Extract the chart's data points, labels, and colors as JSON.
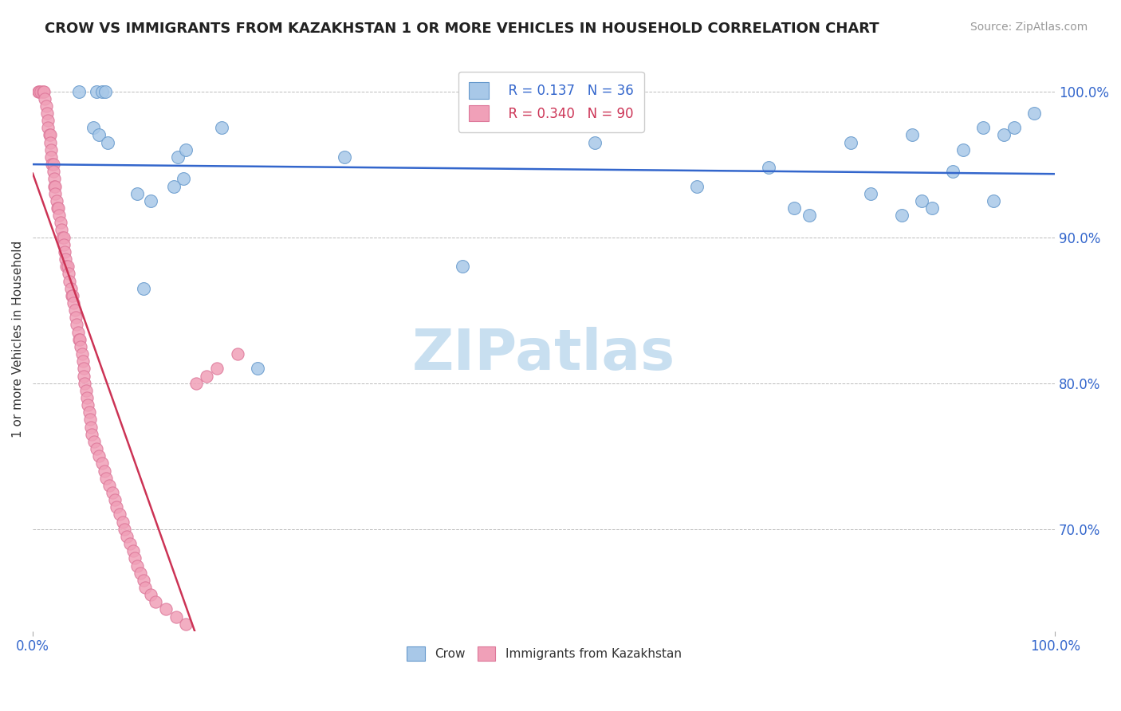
{
  "title": "CROW VS IMMIGRANTS FROM KAZAKHSTAN 1 OR MORE VEHICLES IN HOUSEHOLD CORRELATION CHART",
  "source": "Source: ZipAtlas.com",
  "ylabel": "1 or more Vehicles in Household",
  "ylabel_right_ticks": [
    70.0,
    80.0,
    90.0,
    100.0
  ],
  "xmin": 0.0,
  "xmax": 100.0,
  "ymin": 63.0,
  "ymax": 103.0,
  "crow_R": 0.137,
  "crow_N": 36,
  "immig_R": 0.34,
  "immig_N": 90,
  "crow_color": "#a8c8e8",
  "crow_edge_color": "#6699cc",
  "immig_color": "#f0a0b8",
  "immig_edge_color": "#dd7799",
  "trend_blue": "#3366cc",
  "trend_pink": "#cc3355",
  "watermark_color": "#c8dff0",
  "crow_x": [
    4.5,
    6.2,
    6.8,
    7.1,
    5.9,
    6.5,
    7.3,
    10.2,
    11.5,
    10.8,
    14.2,
    15.0,
    14.7,
    13.8,
    18.5,
    22.0,
    30.5,
    42.0,
    55.0,
    65.0,
    72.0,
    74.5,
    76.0,
    80.0,
    82.0,
    85.0,
    86.0,
    87.0,
    88.0,
    90.0,
    91.0,
    93.0,
    94.0,
    95.0,
    96.0,
    98.0
  ],
  "crow_y": [
    100.0,
    100.0,
    100.0,
    100.0,
    97.5,
    97.0,
    96.5,
    93.0,
    92.5,
    86.5,
    95.5,
    96.0,
    94.0,
    93.5,
    97.5,
    81.0,
    95.5,
    88.0,
    96.5,
    93.5,
    94.8,
    92.0,
    91.5,
    96.5,
    93.0,
    91.5,
    97.0,
    92.5,
    92.0,
    94.5,
    96.0,
    97.5,
    92.5,
    97.0,
    97.5,
    98.5
  ],
  "immig_x": [
    0.5,
    0.6,
    0.8,
    1.0,
    1.1,
    1.2,
    1.3,
    1.4,
    1.5,
    1.5,
    1.6,
    1.7,
    1.7,
    1.8,
    1.8,
    1.9,
    2.0,
    2.0,
    2.1,
    2.1,
    2.2,
    2.2,
    2.3,
    2.4,
    2.5,
    2.6,
    2.7,
    2.8,
    2.9,
    3.0,
    3.0,
    3.1,
    3.2,
    3.3,
    3.4,
    3.5,
    3.6,
    3.7,
    3.8,
    3.9,
    4.0,
    4.1,
    4.2,
    4.3,
    4.4,
    4.5,
    4.6,
    4.7,
    4.8,
    4.9,
    5.0,
    5.0,
    5.1,
    5.2,
    5.3,
    5.4,
    5.5,
    5.6,
    5.7,
    5.8,
    6.0,
    6.2,
    6.5,
    6.8,
    7.0,
    7.2,
    7.5,
    7.8,
    8.0,
    8.2,
    8.5,
    8.8,
    9.0,
    9.2,
    9.5,
    9.8,
    10.0,
    10.2,
    10.5,
    10.8,
    11.0,
    11.5,
    12.0,
    13.0,
    14.0,
    15.0,
    16.0,
    17.0,
    18.0,
    20.0
  ],
  "immig_y": [
    100.0,
    100.0,
    100.0,
    100.0,
    100.0,
    99.5,
    99.0,
    98.5,
    98.0,
    97.5,
    97.0,
    97.0,
    96.5,
    96.0,
    95.5,
    95.0,
    95.0,
    94.5,
    94.0,
    93.5,
    93.5,
    93.0,
    92.5,
    92.0,
    92.0,
    91.5,
    91.0,
    90.5,
    90.0,
    90.0,
    89.5,
    89.0,
    88.5,
    88.0,
    88.0,
    87.5,
    87.0,
    86.5,
    86.0,
    86.0,
    85.5,
    85.0,
    84.5,
    84.0,
    83.5,
    83.0,
    83.0,
    82.5,
    82.0,
    81.5,
    81.0,
    80.5,
    80.0,
    79.5,
    79.0,
    78.5,
    78.0,
    77.5,
    77.0,
    76.5,
    76.0,
    75.5,
    75.0,
    74.5,
    74.0,
    73.5,
    73.0,
    72.5,
    72.0,
    71.5,
    71.0,
    70.5,
    70.0,
    69.5,
    69.0,
    68.5,
    68.0,
    67.5,
    67.0,
    66.5,
    66.0,
    65.5,
    65.0,
    64.5,
    64.0,
    63.5,
    80.0,
    80.5,
    81.0,
    82.0
  ]
}
